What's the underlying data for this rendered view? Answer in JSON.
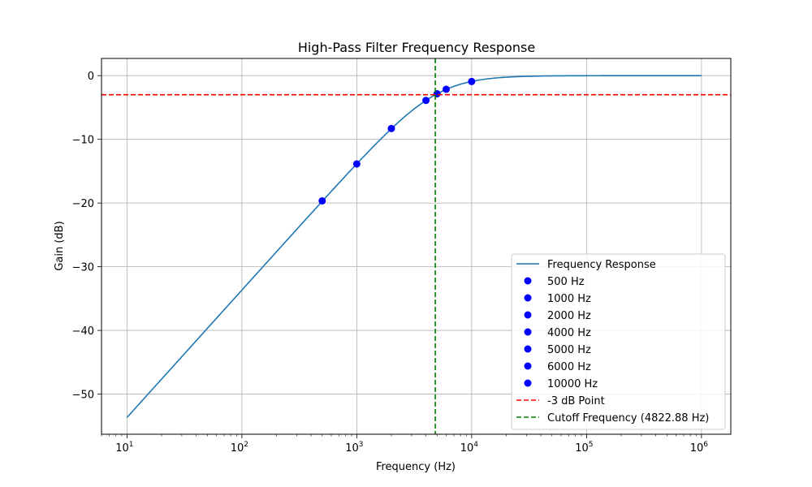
{
  "chart_data": {
    "type": "line",
    "title": "High-Pass Filter Frequency Response",
    "xlabel": "Frequency (Hz)",
    "ylabel": "Gain (dB)",
    "xscale": "log",
    "xlim": [
      6.0,
      1800000
    ],
    "ylim": [
      -56.3,
      2.7
    ],
    "grid": true,
    "legend_position": "lower right",
    "x_ticks": [
      {
        "value": 10,
        "base": "10",
        "exp": "1"
      },
      {
        "value": 100,
        "base": "10",
        "exp": "2"
      },
      {
        "value": 1000,
        "base": "10",
        "exp": "3"
      },
      {
        "value": 10000,
        "base": "10",
        "exp": "4"
      },
      {
        "value": 100000,
        "base": "10",
        "exp": "5"
      },
      {
        "value": 1000000,
        "base": "10",
        "exp": "6"
      }
    ],
    "y_ticks": [
      {
        "value": 0,
        "label": "0"
      },
      {
        "value": -10,
        "label": "−10"
      },
      {
        "value": -20,
        "label": "−20"
      },
      {
        "value": -30,
        "label": "−30"
      },
      {
        "value": -40,
        "label": "−40"
      },
      {
        "value": -50,
        "label": "−50"
      }
    ],
    "cutoff_frequency": 4822.88,
    "response_series": {
      "name": "Frequency Response",
      "color": "#1f77b4",
      "x_range": [
        10,
        1000000
      ]
    },
    "points": [
      {
        "name": "500 Hz",
        "x": 500,
        "y": -19.66
      },
      {
        "name": "1000 Hz",
        "x": 1000,
        "y": -13.86
      },
      {
        "name": "2000 Hz",
        "x": 2000,
        "y": -8.3
      },
      {
        "name": "4000 Hz",
        "x": 4000,
        "y": -3.89
      },
      {
        "name": "5000 Hz",
        "x": 5000,
        "y": -2.85
      },
      {
        "name": "6000 Hz",
        "x": 6000,
        "y": -2.14
      },
      {
        "name": "10000 Hz",
        "x": 10000,
        "y": -0.92
      }
    ],
    "point_color": "#0000ff",
    "hlines": [
      {
        "name": "-3 dB Point",
        "y": -3,
        "color": "#ff0000"
      }
    ],
    "vlines": [
      {
        "name": "Cutoff Frequency (4822.88 Hz)",
        "x": 4822.88,
        "color": "#008000"
      }
    ]
  }
}
